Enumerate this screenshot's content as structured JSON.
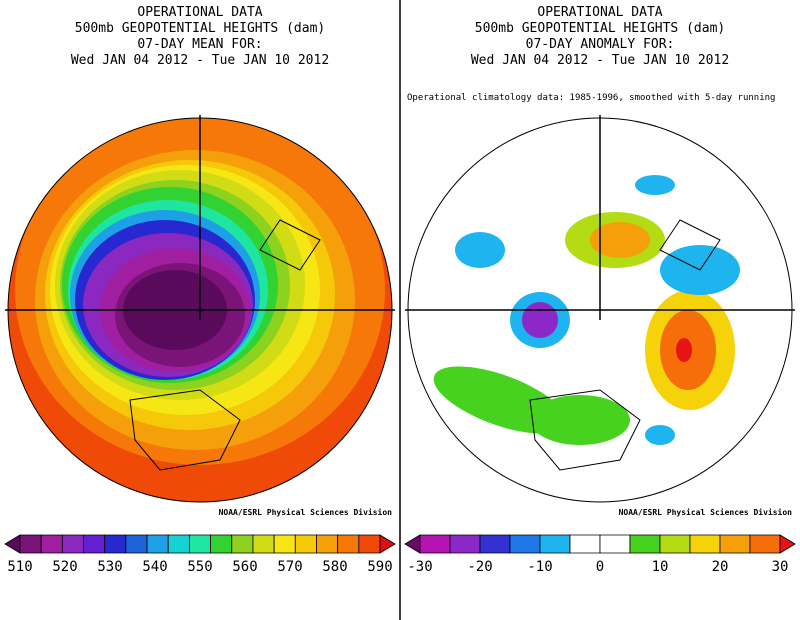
{
  "panels": [
    {
      "title_lines": [
        "OPERATIONAL DATA",
        "500mb GEOPOTENTIAL HEIGHTS (dam)",
        "07-DAY MEAN FOR:",
        "Wed JAN 04 2012 - Tue JAN 10 2012"
      ],
      "credit": "NOAA/ESRL Physical Sciences Division",
      "colorbar": {
        "ticks": [
          510,
          520,
          530,
          540,
          550,
          560,
          570,
          580,
          590
        ],
        "colors": [
          "#5a0a5a",
          "#7a1478",
          "#a01ea0",
          "#8a28c0",
          "#6420d0",
          "#2828d0",
          "#1e64d8",
          "#1ea0e6",
          "#14d2d2",
          "#1ee6a0",
          "#32d232",
          "#8cd21e",
          "#d2dc14",
          "#f5e614",
          "#f5c80a",
          "#f5a00a",
          "#f57808",
          "#f04a08",
          "#dc1010"
        ]
      }
    },
    {
      "title_lines": [
        "OPERATIONAL DATA",
        "500mb GEOPOTENTIAL HEIGHTS (dam)",
        "07-DAY ANOMALY FOR:",
        "Wed JAN 04 2012 - Tue JAN 10 2012"
      ],
      "note": "Operational climatology data: 1985-1996, smoothed with 5-day running",
      "credit": "NOAA/ESRL Physical Sciences Division",
      "colorbar": {
        "ticks": [
          -30,
          -20,
          -10,
          0,
          10,
          20,
          30
        ],
        "colors": [
          "#6a0a6a",
          "#b414b4",
          "#8c28c8",
          "#3232d2",
          "#1e78e6",
          "#1eb4f0",
          "#ffffff",
          "#ffffff",
          "#46d21e",
          "#b4dc14",
          "#f5d20a",
          "#f5a00a",
          "#f56e0a",
          "#e61414"
        ]
      }
    }
  ]
}
